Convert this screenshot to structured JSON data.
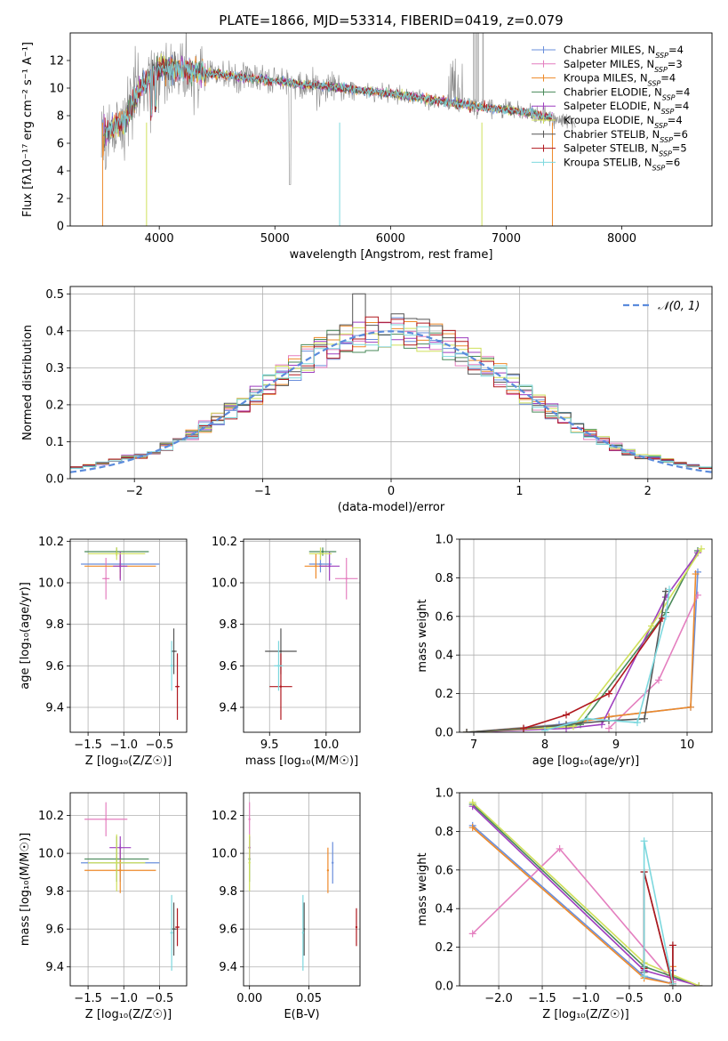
{
  "colors": {
    "Chabrier MILES": "#6a8fdc",
    "Salpeter MILES": "#e47fbf",
    "Kroupa MILES": "#ee8a2a",
    "Chabrier ELODIE": "#4a8a5a",
    "Salpeter ELODIE": "#9e3fbf",
    "Kroupa ELODIE": "#cfe05a",
    "Chabrier STELIB": "#555555",
    "Salpeter STELIB": "#b0181f",
    "Kroupa STELIB": "#7dd8de",
    "data": "#888888",
    "gaussian": "#5b8bdc"
  },
  "chart_data": [
    {
      "id": "spectrum",
      "type": "line",
      "title": "PLATE=1866, MJD=53314, FIBERID=0419, z=0.079",
      "xlabel": "wavelength [Angstrom, rest frame]",
      "ylabel": "Flux [fλ10⁻¹⁷ erg cm⁻² s⁻¹ A⁻¹]",
      "xlim": [
        3230,
        8780
      ],
      "ylim": [
        0,
        14
      ],
      "xticks": [
        4000,
        5000,
        6000,
        7000,
        8000
      ],
      "yticks": [
        0,
        2,
        4,
        6,
        8,
        10,
        12
      ],
      "legend": "top-right",
      "legend_entries": [
        {
          "label": "Chabrier MILES, N",
          "sub": "SSP",
          "n": "=4"
        },
        {
          "label": "Salpeter MILES, N",
          "sub": "SSP",
          "n": "=3"
        },
        {
          "label": "Kroupa MILES, N",
          "sub": "SSP",
          "n": "=4"
        },
        {
          "label": "Chabrier ELODIE, N",
          "sub": "SSP",
          "n": "=4"
        },
        {
          "label": "Salpeter ELODIE, N",
          "sub": "SSP",
          "n": "=4"
        },
        {
          "label": "Kroupa ELODIE, N",
          "sub": "SSP",
          "n": "=4"
        },
        {
          "label": "Chabrier STELIB, N",
          "sub": "SSP",
          "n": "=6"
        },
        {
          "label": "Salpeter STELIB, N",
          "sub": "SSP",
          "n": "=5"
        },
        {
          "label": "Kroupa STELIB, N",
          "sub": "SSP",
          "n": "=6"
        }
      ],
      "continuum": {
        "wavelength": [
          3530,
          3600,
          3700,
          3800,
          3900,
          4000,
          4100,
          4300,
          4500,
          4800,
          5200,
          5600,
          6000,
          6400,
          6800,
          7200,
          7600
        ],
        "flux": [
          6.6,
          7.2,
          7.6,
          9.6,
          10.6,
          11.4,
          11.5,
          11.2,
          11.0,
          10.7,
          10.3,
          10.0,
          9.6,
          9.1,
          8.6,
          8.2,
          7.5
        ]
      },
      "model_range": [
        3510,
        7400
      ],
      "data_range": [
        3500,
        7600
      ]
    },
    {
      "id": "residuals",
      "type": "step",
      "xlabel": "(data-model)/error",
      "ylabel": "Normed distribution",
      "xlim": [
        -2.5,
        2.5
      ],
      "ylim": [
        0,
        0.52
      ],
      "xticks": [
        -2,
        -1,
        0,
        1,
        2
      ],
      "yticks": [
        0.0,
        0.1,
        0.2,
        0.3,
        0.4,
        0.5
      ],
      "gaussian_label": "𝒩(0, 1)",
      "bin_width": 0.1,
      "legend": "top-right"
    },
    {
      "id": "age-vs-Z",
      "type": "scatter",
      "xlabel": "Z [log₁₀(Z/Z☉)]",
      "ylabel": "age  [log₁₀(age/yr)]",
      "xlim": [
        -1.75,
        -0.12
      ],
      "ylim": [
        9.28,
        10.21
      ],
      "xticks": [
        -1.5,
        -1.0,
        -0.5
      ],
      "yticks": [
        9.4,
        9.6,
        9.8,
        10.0,
        10.2
      ],
      "points": [
        {
          "model": "Chabrier MILES",
          "x": -1.05,
          "xerr": 0.55,
          "y": 10.09,
          "yerr": 0.04
        },
        {
          "model": "Salpeter MILES",
          "x": -1.25,
          "xerr": 0.05,
          "y": 10.02,
          "yerr": 0.1
        },
        {
          "model": "Kroupa MILES",
          "x": -1.05,
          "xerr": 0.5,
          "y": 10.08,
          "yerr": 0.06
        },
        {
          "model": "Chabrier ELODIE",
          "x": -1.1,
          "xerr": 0.45,
          "y": 10.15,
          "yerr": 0.02
        },
        {
          "model": "Salpeter ELODIE",
          "x": -1.05,
          "xerr": 0.1,
          "y": 10.08,
          "yerr": 0.07
        },
        {
          "model": "Kroupa ELODIE",
          "x": -1.1,
          "xerr": 0.4,
          "y": 10.14,
          "yerr": 0.03
        },
        {
          "model": "Chabrier STELIB",
          "x": -0.3,
          "xerr": 0.04,
          "y": 9.67,
          "yerr": 0.11
        },
        {
          "model": "Salpeter STELIB",
          "x": -0.25,
          "xerr": 0.03,
          "y": 9.5,
          "yerr": 0.16
        },
        {
          "model": "Kroupa STELIB",
          "x": -0.33,
          "xerr": 0.02,
          "y": 9.6,
          "yerr": 0.12
        }
      ]
    },
    {
      "id": "age-vs-mass",
      "type": "scatter",
      "xlabel": "mass [log₁₀(M/M☉)]",
      "ylabel": "",
      "xlim": [
        9.27,
        10.3
      ],
      "ylim": [
        9.28,
        10.21
      ],
      "xticks": [
        9.5,
        10.0
      ],
      "yticks": [
        9.4,
        9.6,
        9.8,
        10.0,
        10.2
      ],
      "points": [
        {
          "model": "Chabrier MILES",
          "x": 9.95,
          "xerr": 0.1,
          "y": 10.09,
          "yerr": 0.04
        },
        {
          "model": "Salpeter MILES",
          "x": 10.18,
          "xerr": 0.1,
          "y": 10.02,
          "yerr": 0.1
        },
        {
          "model": "Kroupa MILES",
          "x": 9.91,
          "xerr": 0.1,
          "y": 10.08,
          "yerr": 0.06
        },
        {
          "model": "Chabrier ELODIE",
          "x": 9.97,
          "xerr": 0.12,
          "y": 10.15,
          "yerr": 0.02
        },
        {
          "model": "Salpeter ELODIE",
          "x": 10.03,
          "xerr": 0.09,
          "y": 10.08,
          "yerr": 0.07
        },
        {
          "model": "Kroupa ELODIE",
          "x": 9.95,
          "xerr": 0.1,
          "y": 10.14,
          "yerr": 0.03
        },
        {
          "model": "Chabrier STELIB",
          "x": 9.6,
          "xerr": 0.14,
          "y": 9.67,
          "yerr": 0.11
        },
        {
          "model": "Salpeter STELIB",
          "x": 9.6,
          "xerr": 0.1,
          "y": 9.5,
          "yerr": 0.16
        },
        {
          "model": "Kroupa STELIB",
          "x": 9.58,
          "xerr": 0.04,
          "y": 9.6,
          "yerr": 0.12
        }
      ]
    },
    {
      "id": "mass-weight-vs-age",
      "type": "line",
      "xlabel": "age  [log₁₀(age/yr)]",
      "ylabel": "mass weight",
      "xlim": [
        6.8,
        10.35
      ],
      "ylim": [
        0,
        1
      ],
      "xticks": [
        7,
        8,
        9,
        10
      ],
      "yticks": [
        0.0,
        0.2,
        0.4,
        0.6,
        0.8,
        1.0
      ],
      "series": [
        {
          "model": "Chabrier MILES",
          "x": [
            6.9,
            8.2,
            8.9,
            10.05,
            10.15
          ],
          "y": [
            0.0,
            0.04,
            0.08,
            0.13,
            0.83
          ]
        },
        {
          "model": "Salpeter MILES",
          "x": [
            8.9,
            9.6,
            10.15
          ],
          "y": [
            0.02,
            0.27,
            0.71
          ]
        },
        {
          "model": "Kroupa MILES",
          "x": [
            6.9,
            8.3,
            8.9,
            10.05,
            10.12
          ],
          "y": [
            0.0,
            0.04,
            0.08,
            0.13,
            0.82
          ]
        },
        {
          "model": "Chabrier ELODIE",
          "x": [
            6.9,
            8.5,
            9.7,
            10.15
          ],
          "y": [
            0.0,
            0.04,
            0.62,
            0.94
          ]
        },
        {
          "model": "Salpeter ELODIE",
          "x": [
            6.9,
            8.3,
            8.8,
            9.7,
            10.15
          ],
          "y": [
            0.0,
            0.02,
            0.04,
            0.7,
            0.93
          ]
        },
        {
          "model": "Kroupa ELODIE",
          "x": [
            6.9,
            8.4,
            9.5,
            10.2
          ],
          "y": [
            0.0,
            0.03,
            0.55,
            0.95
          ]
        },
        {
          "model": "Chabrier STELIB",
          "x": [
            6.9,
            7.7,
            8.3,
            8.9,
            9.4,
            9.7
          ],
          "y": [
            0.0,
            0.02,
            0.04,
            0.06,
            0.07,
            0.73
          ]
        },
        {
          "model": "Salpeter STELIB",
          "x": [
            7.7,
            8.3,
            8.9,
            9.65
          ],
          "y": [
            0.02,
            0.09,
            0.2,
            0.59
          ]
        },
        {
          "model": "Kroupa STELIB",
          "x": [
            8.0,
            8.6,
            9.3,
            9.7,
            9.75
          ],
          "y": [
            0.01,
            0.07,
            0.05,
            0.6,
            0.74
          ]
        }
      ]
    },
    {
      "id": "mass-vs-Z",
      "type": "scatter",
      "xlabel": "Z [log₁₀(Z/Z☉)]",
      "ylabel": "mass [log₁₀(M/M☉)]",
      "xlim": [
        -1.75,
        -0.12
      ],
      "ylim": [
        9.3,
        10.32
      ],
      "xticks": [
        -1.5,
        -1.0,
        -0.5
      ],
      "yticks": [
        9.4,
        9.6,
        9.8,
        10.0,
        10.2
      ],
      "points": [
        {
          "model": "Chabrier MILES",
          "x": -1.05,
          "xerr": 0.55,
          "y": 9.95,
          "yerr": 0.1
        },
        {
          "model": "Salpeter MILES",
          "x": -1.25,
          "xerr": 0.3,
          "y": 10.18,
          "yerr": 0.09
        },
        {
          "model": "Kroupa MILES",
          "x": -1.05,
          "xerr": 0.5,
          "y": 9.91,
          "yerr": 0.12
        },
        {
          "model": "Chabrier ELODIE",
          "x": -1.1,
          "xerr": 0.45,
          "y": 9.97,
          "yerr": 0.12
        },
        {
          "model": "Salpeter ELODIE",
          "x": -1.05,
          "xerr": 0.15,
          "y": 10.03,
          "yerr": 0.06
        },
        {
          "model": "Kroupa ELODIE",
          "x": -1.1,
          "xerr": 0.4,
          "y": 9.95,
          "yerr": 0.15
        },
        {
          "model": "Chabrier STELIB",
          "x": -0.3,
          "xerr": 0.04,
          "y": 9.6,
          "yerr": 0.14
        },
        {
          "model": "Salpeter STELIB",
          "x": -0.25,
          "xerr": 0.03,
          "y": 9.61,
          "yerr": 0.1
        },
        {
          "model": "Kroupa STELIB",
          "x": -0.33,
          "xerr": 0.02,
          "y": 9.58,
          "yerr": 0.2
        }
      ]
    },
    {
      "id": "mass-vs-ebv",
      "type": "scatter",
      "xlabel": "E(B-V)",
      "ylabel": "",
      "xlim": [
        -0.005,
        0.093
      ],
      "ylim": [
        9.3,
        10.32
      ],
      "xticks": [
        0.0,
        0.05
      ],
      "yticks": [
        9.4,
        9.6,
        9.8,
        10.0,
        10.2
      ],
      "points": [
        {
          "model": "Chabrier MILES",
          "x": 0.07,
          "xerr": 0.0,
          "y": 9.95,
          "yerr": 0.11
        },
        {
          "model": "Salpeter MILES",
          "x": 0.0,
          "xerr": 0.0,
          "y": 10.18,
          "yerr": 0.09
        },
        {
          "model": "Kroupa MILES",
          "x": 0.066,
          "xerr": 0.0,
          "y": 9.91,
          "yerr": 0.12
        },
        {
          "model": "Chabrier ELODIE",
          "x": 0.0,
          "xerr": 0.0,
          "y": 9.97,
          "yerr": 0.12
        },
        {
          "model": "Salpeter ELODIE",
          "x": 0.0,
          "xerr": 0.0,
          "y": 10.03,
          "yerr": 0.06
        },
        {
          "model": "Kroupa ELODIE",
          "x": 0.0,
          "xerr": 0.0,
          "y": 9.95,
          "yerr": 0.15
        },
        {
          "model": "Chabrier STELIB",
          "x": 0.046,
          "xerr": 0.0,
          "y": 9.6,
          "yerr": 0.14
        },
        {
          "model": "Salpeter STELIB",
          "x": 0.09,
          "xerr": 0.0,
          "y": 9.61,
          "yerr": 0.1
        },
        {
          "model": "Kroupa STELIB",
          "x": 0.045,
          "xerr": 0.0,
          "y": 9.58,
          "yerr": 0.2
        }
      ]
    },
    {
      "id": "mass-weight-vs-Z",
      "type": "line",
      "xlabel": "Z [log₁₀(Z/Z☉)]",
      "ylabel": "mass weight",
      "xlim": [
        -2.45,
        0.45
      ],
      "ylim": [
        0,
        1
      ],
      "xticks": [
        -2.0,
        -1.5,
        -1.0,
        -0.5,
        0.0
      ],
      "yticks": [
        0.0,
        0.2,
        0.4,
        0.6,
        0.8,
        1.0
      ],
      "series": [
        {
          "model": "Chabrier MILES",
          "x": [
            -2.3,
            -0.33,
            0.0,
            0.0
          ],
          "y": [
            0.83,
            0.05,
            0.01,
            0.08
          ]
        },
        {
          "model": "Salpeter MILES",
          "x": [
            -2.3,
            -1.3,
            0.0
          ],
          "y": [
            0.27,
            0.71,
            0.02
          ]
        },
        {
          "model": "Kroupa MILES",
          "x": [
            -2.3,
            -0.33,
            0.0,
            0.0
          ],
          "y": [
            0.82,
            0.04,
            0.01,
            0.1
          ]
        },
        {
          "model": "Chabrier ELODIE",
          "x": [
            -2.3,
            -0.33,
            0.3
          ],
          "y": [
            0.94,
            0.1,
            0.0
          ]
        },
        {
          "model": "Salpeter ELODIE",
          "x": [
            -2.3,
            -0.33,
            0.3
          ],
          "y": [
            0.93,
            0.08,
            0.0
          ]
        },
        {
          "model": "Kroupa ELODIE",
          "x": [
            -2.3,
            -0.33,
            0.3
          ],
          "y": [
            0.95,
            0.12,
            0.0
          ]
        },
        {
          "model": "Chabrier STELIB",
          "x": [
            -0.33,
            -0.33,
            0.0,
            0.0
          ],
          "y": [
            0.07,
            0.59,
            0.0,
            0.21
          ]
        },
        {
          "model": "Salpeter STELIB",
          "x": [
            -0.33,
            -0.33,
            0.0,
            0.0
          ],
          "y": [
            0.09,
            0.59,
            0.0,
            0.21
          ]
        },
        {
          "model": "Kroupa STELIB",
          "x": [
            -0.33,
            -0.33,
            0.0
          ],
          "y": [
            0.05,
            0.75,
            0.01
          ]
        }
      ]
    }
  ]
}
